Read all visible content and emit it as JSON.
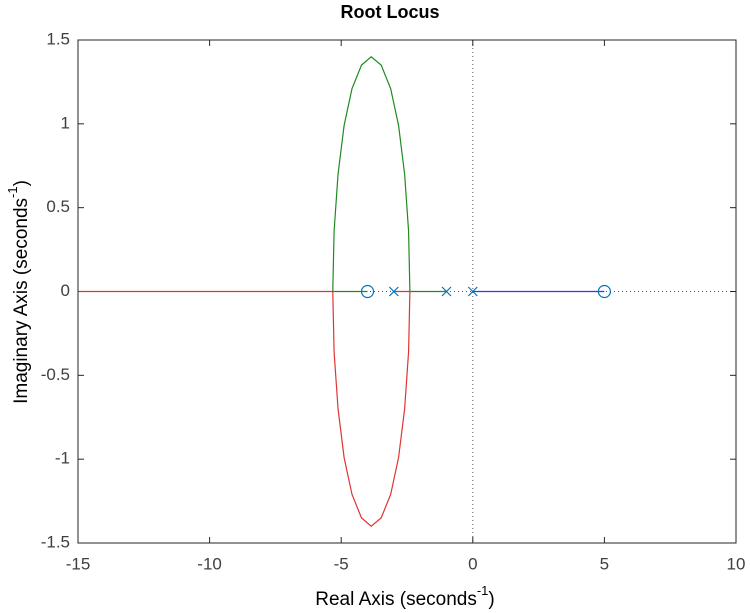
{
  "chart_data": {
    "type": "line",
    "title": "Root Locus",
    "xlabel": [
      "Real Axis (seconds",
      "-1",
      ")"
    ],
    "ylabel": [
      "Imaginary Axis (seconds",
      "-1",
      ")"
    ],
    "xlim": [
      -15,
      10
    ],
    "ylim": [
      -1.5,
      1.5
    ],
    "xticks": [
      -15,
      -10,
      -5,
      0,
      5,
      10
    ],
    "yticks": [
      -1.5,
      -1,
      -0.5,
      0,
      0.5,
      1,
      1.5
    ],
    "series": [
      {
        "kind": "line",
        "color": "#3333ff",
        "x": [
          0,
          5
        ],
        "y": [
          0,
          0
        ]
      },
      {
        "kind": "line",
        "color": "#1f8a1f",
        "x": [
          -1,
          -2.39,
          -2.44,
          -2.59,
          -2.82,
          -3.12,
          -3.48,
          -3.86,
          -4.23,
          -4.59,
          -4.89,
          -5.12,
          -5.27,
          -5.32,
          -4
        ],
        "y": [
          0,
          0,
          0.36,
          0.7,
          0.99,
          1.21,
          1.35,
          1.4,
          1.35,
          1.21,
          0.99,
          0.7,
          0.36,
          0,
          0
        ]
      },
      {
        "kind": "line",
        "color": "#e03434",
        "x": [
          -3,
          -2.39,
          -2.44,
          -2.59,
          -2.82,
          -3.12,
          -3.48,
          -3.86,
          -4.23,
          -4.59,
          -4.89,
          -5.12,
          -5.27,
          -5.32,
          -15
        ],
        "y": [
          0,
          0,
          -0.36,
          -0.7,
          -0.99,
          -1.21,
          -1.35,
          -1.4,
          -1.35,
          -1.21,
          -0.99,
          -0.7,
          -0.36,
          0,
          0
        ]
      },
      {
        "kind": "x-marker",
        "color": "#0072bd",
        "x": [
          0,
          -1,
          -3
        ],
        "y": [
          0,
          0,
          0
        ]
      },
      {
        "kind": "o-marker",
        "color": "#0072bd",
        "x": [
          -4,
          5
        ],
        "y": [
          0,
          0
        ]
      }
    ]
  }
}
